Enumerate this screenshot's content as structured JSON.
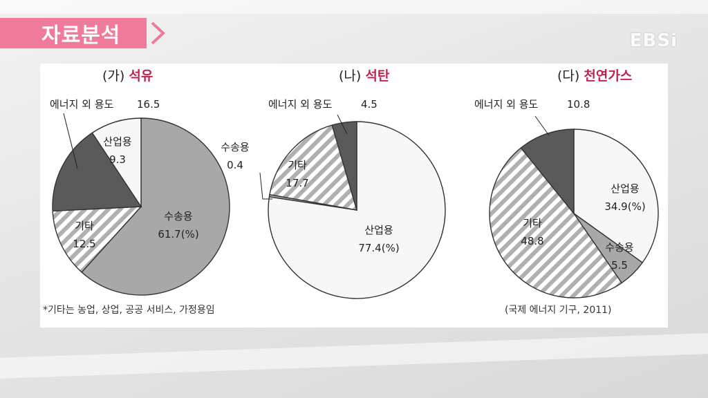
{
  "header": {
    "title": "자료분석",
    "logo": "EBSi",
    "accent_color": "#f07a9a"
  },
  "chart_data": [
    {
      "type": "pie",
      "label": "(가)",
      "title": "석유",
      "slices": [
        {
          "name": "수송용",
          "value": 61.7,
          "text": "61.7(%)",
          "fill": "solid",
          "color": "#a8a8a8"
        },
        {
          "name": "기타",
          "value": 12.5,
          "text": "12.5",
          "fill": "hatch",
          "color": "#b0b0b0"
        },
        {
          "name": "에너지 외 용도",
          "value": 16.5,
          "text": "16.5",
          "fill": "solid",
          "color": "#5a5a5a"
        },
        {
          "name": "산업용",
          "value": 9.3,
          "text": "9.3",
          "fill": "solid",
          "color": "#f7f7f7"
        }
      ]
    },
    {
      "type": "pie",
      "label": "(나)",
      "title": "석탄",
      "slices": [
        {
          "name": "산업용",
          "value": 77.4,
          "text": "77.4(%)",
          "fill": "solid",
          "color": "#f7f7f7"
        },
        {
          "name": "수송용",
          "value": 0.4,
          "text": "0.4",
          "fill": "solid",
          "color": "#a8a8a8"
        },
        {
          "name": "기타",
          "value": 17.7,
          "text": "17.7",
          "fill": "hatch",
          "color": "#b0b0b0"
        },
        {
          "name": "에너지 외 용도",
          "value": 4.5,
          "text": "4.5",
          "fill": "solid",
          "color": "#5a5a5a"
        }
      ]
    },
    {
      "type": "pie",
      "label": "(다)",
      "title": "천연가스",
      "slices": [
        {
          "name": "산업용",
          "value": 34.9,
          "text": "34.9(%)",
          "fill": "solid",
          "color": "#f7f7f7"
        },
        {
          "name": "수송용",
          "value": 5.5,
          "text": "5.5",
          "fill": "solid",
          "color": "#a8a8a8"
        },
        {
          "name": "기타",
          "value": 48.8,
          "text": "48.8",
          "fill": "hatch",
          "color": "#b0b0b0"
        },
        {
          "name": "에너지 외 용도",
          "value": 10.8,
          "text": "10.8",
          "fill": "solid",
          "color": "#5a5a5a"
        }
      ]
    }
  ],
  "footnote": "*기타는 농업, 상업, 공공 서비스, 가정용임",
  "source": "(국제 에너지 기구, 2011)",
  "title_color": "#c0234e"
}
